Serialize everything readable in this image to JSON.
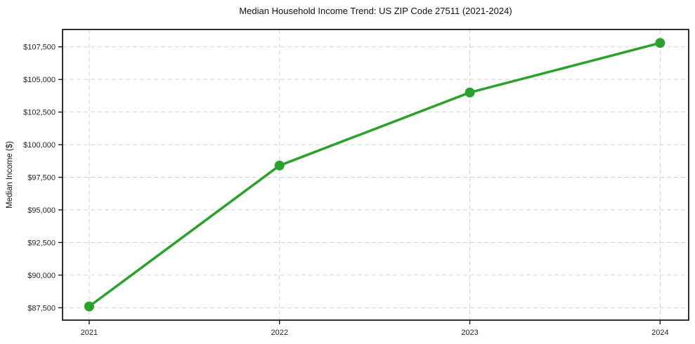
{
  "chart_data": {
    "type": "line",
    "title": "Median Household Income Trend: US ZIP Code 27511 (2021-2024)",
    "xlabel": "",
    "ylabel": "Median Income ($)",
    "x": [
      2021,
      2022,
      2023,
      2024
    ],
    "x_tick_labels": [
      "2021",
      "2022",
      "2023",
      "2024"
    ],
    "series": [
      {
        "name": "Median household income",
        "values": [
          87600,
          98400,
          104000,
          107800
        ],
        "color": "#2ca02c",
        "marker": "circle",
        "marker_radius": 7
      }
    ],
    "y_ticks": [
      87500,
      90000,
      92500,
      95000,
      97500,
      100000,
      102500,
      105000,
      107500
    ],
    "y_tick_labels": [
      "$87,500",
      "$90,000",
      "$92,500",
      "$95,000",
      "$97,500",
      "$100,000",
      "$102,500",
      "$105,000",
      "$107,500"
    ],
    "xlim": [
      2020.86,
      2024.15
    ],
    "ylim": [
      86550,
      108830
    ],
    "grid": true,
    "grid_style": "dashed",
    "legend_position": "none",
    "background_color": "#ffffff"
  }
}
